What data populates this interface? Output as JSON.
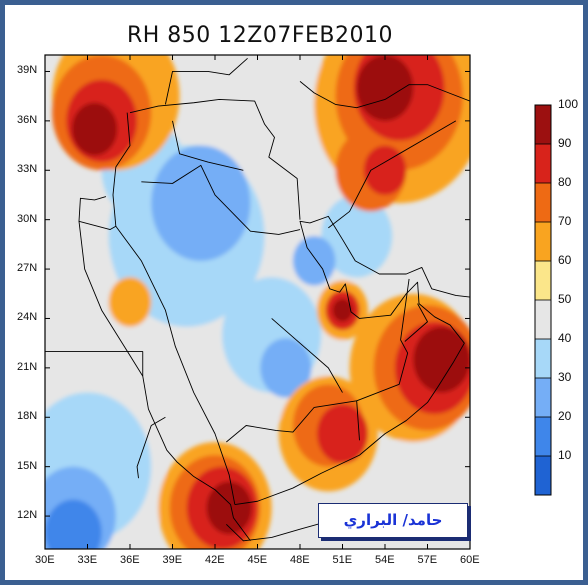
{
  "title": "RH  850  12Z07FEB2010",
  "credit": "حامد/ البراري",
  "lat_labels": [
    "39N",
    "36N",
    "33N",
    "30N",
    "27N",
    "24N",
    "21N",
    "18N",
    "15N",
    "12N"
  ],
  "lon_labels": [
    "30E",
    "33E",
    "36E",
    "39E",
    "42E",
    "45E",
    "48E",
    "51E",
    "54E",
    "57E",
    "60E"
  ],
  "colorbar": {
    "labels": [
      "10",
      "20",
      "30",
      "40",
      "50",
      "60",
      "70",
      "80",
      "90",
      "100"
    ],
    "colors": [
      "#1f63d3",
      "#3f86ea",
      "#75aef6",
      "#a7d8f8",
      "#e6e6e6",
      "#fbe68a",
      "#f9a420",
      "#ee6a14",
      "#d8231b",
      "#9c1010"
    ]
  },
  "map": {
    "lon_range": [
      30,
      60
    ],
    "lat_range": [
      10,
      40
    ],
    "fields": [
      {
        "level": 4,
        "lon": 43,
        "lat": 26,
        "r": 8.8
      },
      {
        "level": 4,
        "lon": 33,
        "lat": 14,
        "r": 5.5
      },
      {
        "level": 4,
        "lon": 58,
        "lat": 14,
        "r": 4.0
      },
      {
        "level": 4,
        "lon": 47,
        "lat": 34,
        "r": 6.0
      },
      {
        "level": 3,
        "lon": 40,
        "lat": 29,
        "r": 5.5
      },
      {
        "level": 3,
        "lon": 33,
        "lat": 15,
        "r": 4.5
      },
      {
        "level": 3,
        "lon": 46,
        "lat": 23,
        "r": 3.5
      },
      {
        "level": 3,
        "lon": 37,
        "lat": 33,
        "r": 3.0
      },
      {
        "level": 3,
        "lon": 52,
        "lat": 29,
        "r": 2.5
      },
      {
        "level": 2,
        "lon": 41,
        "lat": 31,
        "r": 3.5
      },
      {
        "level": 2,
        "lon": 32,
        "lat": 12,
        "r": 3.0
      },
      {
        "level": 2,
        "lon": 49,
        "lat": 27.5,
        "r": 1.5
      },
      {
        "level": 2,
        "lon": 47,
        "lat": 21,
        "r": 1.8
      },
      {
        "level": 1,
        "lon": 32,
        "lat": 11,
        "r": 2.0
      },
      {
        "level": 6,
        "lon": 35,
        "lat": 37.5,
        "r": 4.5
      },
      {
        "level": 6,
        "lon": 55,
        "lat": 37,
        "r": 6.0
      },
      {
        "level": 6,
        "lon": 56,
        "lat": 21,
        "r": 4.5
      },
      {
        "level": 6,
        "lon": 42,
        "lat": 12.5,
        "r": 4.0
      },
      {
        "level": 6,
        "lon": 50,
        "lat": 17,
        "r": 3.5
      },
      {
        "level": 6,
        "lon": 51,
        "lat": 24.5,
        "r": 1.8
      },
      {
        "level": 6,
        "lon": 36,
        "lat": 25,
        "r": 1.5
      },
      {
        "level": 7,
        "lon": 34,
        "lat": 36.5,
        "r": 3.5
      },
      {
        "level": 7,
        "lon": 55,
        "lat": 37.5,
        "r": 4.5
      },
      {
        "level": 7,
        "lon": 57,
        "lat": 21,
        "r": 3.8
      },
      {
        "level": 7,
        "lon": 42,
        "lat": 12.5,
        "r": 3.2
      },
      {
        "level": 7,
        "lon": 50,
        "lat": 17.5,
        "r": 2.5
      },
      {
        "level": 7,
        "lon": 53,
        "lat": 33,
        "r": 2.5
      },
      {
        "level": 8,
        "lon": 34,
        "lat": 36,
        "r": 2.5
      },
      {
        "level": 8,
        "lon": 55,
        "lat": 38,
        "r": 3.2
      },
      {
        "level": 8,
        "lon": 57.5,
        "lat": 21,
        "r": 2.8
      },
      {
        "level": 8,
        "lon": 42.5,
        "lat": 12.5,
        "r": 2.5
      },
      {
        "level": 8,
        "lon": 51,
        "lat": 17,
        "r": 1.8
      },
      {
        "level": 8,
        "lon": 51,
        "lat": 24.5,
        "r": 1.2
      },
      {
        "level": 8,
        "lon": 54,
        "lat": 33,
        "r": 1.5
      },
      {
        "level": 9,
        "lon": 33.5,
        "lat": 35.5,
        "r": 1.6
      },
      {
        "level": 9,
        "lon": 54,
        "lat": 38,
        "r": 2.0
      },
      {
        "level": 9,
        "lon": 58,
        "lat": 21.5,
        "r": 2.0
      },
      {
        "level": 9,
        "lon": 43,
        "lat": 12.5,
        "r": 1.6
      },
      {
        "level": 9,
        "lon": 51,
        "lat": 24.5,
        "r": 0.7
      }
    ],
    "region_lines": [
      [
        [
          35.8,
          36.5
        ],
        [
          36,
          34.5
        ],
        [
          35,
          33.2
        ],
        [
          34.8,
          31.5
        ],
        [
          35,
          29.6
        ],
        [
          34.6,
          29.4
        ],
        [
          32.4,
          29.9
        ],
        [
          32.5,
          31.3
        ],
        [
          33.5,
          31.2
        ],
        [
          34.3,
          31.4
        ]
      ],
      [
        [
          35,
          29.6
        ],
        [
          36.8,
          27.5
        ],
        [
          38.5,
          24.5
        ],
        [
          39.2,
          22.3
        ],
        [
          40.5,
          19.5
        ],
        [
          42,
          17
        ],
        [
          43,
          14.5
        ],
        [
          43.4,
          12.7
        ]
      ],
      [
        [
          43.4,
          12.7
        ],
        [
          45,
          12.9
        ],
        [
          47.5,
          13.7
        ],
        [
          49.5,
          14.6
        ],
        [
          52.2,
          15.7
        ],
        [
          54,
          17
        ],
        [
          55.5,
          17.8
        ],
        [
          57,
          18.9
        ],
        [
          57.7,
          19.8
        ],
        [
          58.8,
          21.3
        ],
        [
          59.6,
          22.5
        ],
        [
          58.6,
          23.6
        ],
        [
          57.5,
          24.1
        ],
        [
          56.4,
          24.9
        ],
        [
          56.3,
          26.2
        ],
        [
          55.5,
          25.5
        ],
        [
          54.4,
          24.2
        ],
        [
          52.2,
          24
        ],
        [
          51.6,
          24.4
        ],
        [
          51.2,
          26.1
        ],
        [
          50.8,
          25.6
        ],
        [
          50.1,
          25.8
        ],
        [
          49.6,
          27
        ],
        [
          48.5,
          28.3
        ],
        [
          48,
          29.9
        ],
        [
          48.7,
          29.8
        ],
        [
          50,
          30.2
        ],
        [
          51,
          28.8
        ],
        [
          51.9,
          27.5
        ],
        [
          53.6,
          26.7
        ],
        [
          55.5,
          26.7
        ],
        [
          56.6,
          27.1
        ],
        [
          57.3,
          25.8
        ],
        [
          59,
          25.4
        ],
        [
          60,
          25.3
        ]
      ],
      [
        [
          32.4,
          29.9
        ],
        [
          32.8,
          27
        ],
        [
          34,
          24.5
        ],
        [
          35.6,
          22.3
        ],
        [
          36.9,
          20.5
        ],
        [
          37.3,
          18.5
        ],
        [
          38.6,
          16
        ],
        [
          39.3,
          15.3
        ],
        [
          40.5,
          14.4
        ],
        [
          42,
          13.6
        ],
        [
          43.1,
          12.7
        ],
        [
          43.3,
          11.9
        ],
        [
          44.5,
          10.5
        ]
      ],
      [
        [
          42.8,
          11.5
        ],
        [
          44,
          10.5
        ],
        [
          46,
          10.7
        ],
        [
          48,
          11.2
        ],
        [
          50.5,
          11.8
        ],
        [
          51.2,
          11.5
        ]
      ],
      [
        [
          36,
          36.5
        ],
        [
          38,
          36.9
        ],
        [
          40.5,
          37.1
        ],
        [
          42.3,
          37.3
        ],
        [
          44.8,
          37.2
        ],
        [
          45.5,
          35.8
        ],
        [
          46.2,
          35
        ],
        [
          45.8,
          33.8
        ],
        [
          47.8,
          32.5
        ],
        [
          48,
          30
        ]
      ],
      [
        [
          36.8,
          32.3
        ],
        [
          39,
          32.2
        ],
        [
          41,
          33.3
        ],
        [
          42,
          31.5
        ],
        [
          44.5,
          29.3
        ],
        [
          46.5,
          29.1
        ],
        [
          48,
          29.4
        ]
      ],
      [
        [
          38.5,
          37
        ],
        [
          39,
          39
        ],
        [
          41.5,
          39
        ],
        [
          43,
          38.8
        ],
        [
          44.3,
          39.8
        ]
      ],
      [
        [
          48,
          38.4
        ],
        [
          49,
          37.7
        ],
        [
          50.5,
          37
        ],
        [
          52,
          36.8
        ],
        [
          54,
          37.3
        ],
        [
          55.7,
          38.2
        ],
        [
          57,
          38.2
        ],
        [
          58.5,
          37.7
        ],
        [
          60,
          37.2
        ]
      ],
      [
        [
          55.7,
          26.4
        ],
        [
          55.1,
          22.7
        ],
        [
          55.6,
          21.9
        ],
        [
          55,
          20
        ],
        [
          52,
          19
        ],
        [
          52.2,
          16.6
        ]
      ],
      [
        [
          55.4,
          22.6
        ],
        [
          57,
          23.8
        ],
        [
          56.3,
          24.9
        ]
      ],
      [
        [
          42.8,
          16.5
        ],
        [
          44.2,
          17.5
        ],
        [
          46.3,
          17.2
        ],
        [
          47.5,
          17.1
        ],
        [
          49,
          18.6
        ],
        [
          52,
          19
        ]
      ],
      [
        [
          36.9,
          22
        ],
        [
          36.9,
          20.5
        ]
      ],
      [
        [
          38.5,
          18
        ],
        [
          37.5,
          17.5
        ],
        [
          36.5,
          15
        ],
        [
          36.6,
          14.3
        ]
      ],
      [
        [
          24,
          22
        ],
        [
          30,
          22
        ],
        [
          36.9,
          22
        ]
      ],
      [
        [
          39,
          36
        ],
        [
          39.5,
          34
        ],
        [
          41.5,
          33.5
        ],
        [
          44,
          33
        ]
      ],
      [
        [
          50,
          29.5
        ],
        [
          51.5,
          30.5
        ],
        [
          53,
          33
        ],
        [
          55,
          34
        ],
        [
          57,
          35
        ],
        [
          59,
          36
        ]
      ],
      [
        [
          46,
          24
        ],
        [
          48,
          22.5
        ],
        [
          50,
          21
        ],
        [
          51,
          19.5
        ]
      ]
    ]
  }
}
